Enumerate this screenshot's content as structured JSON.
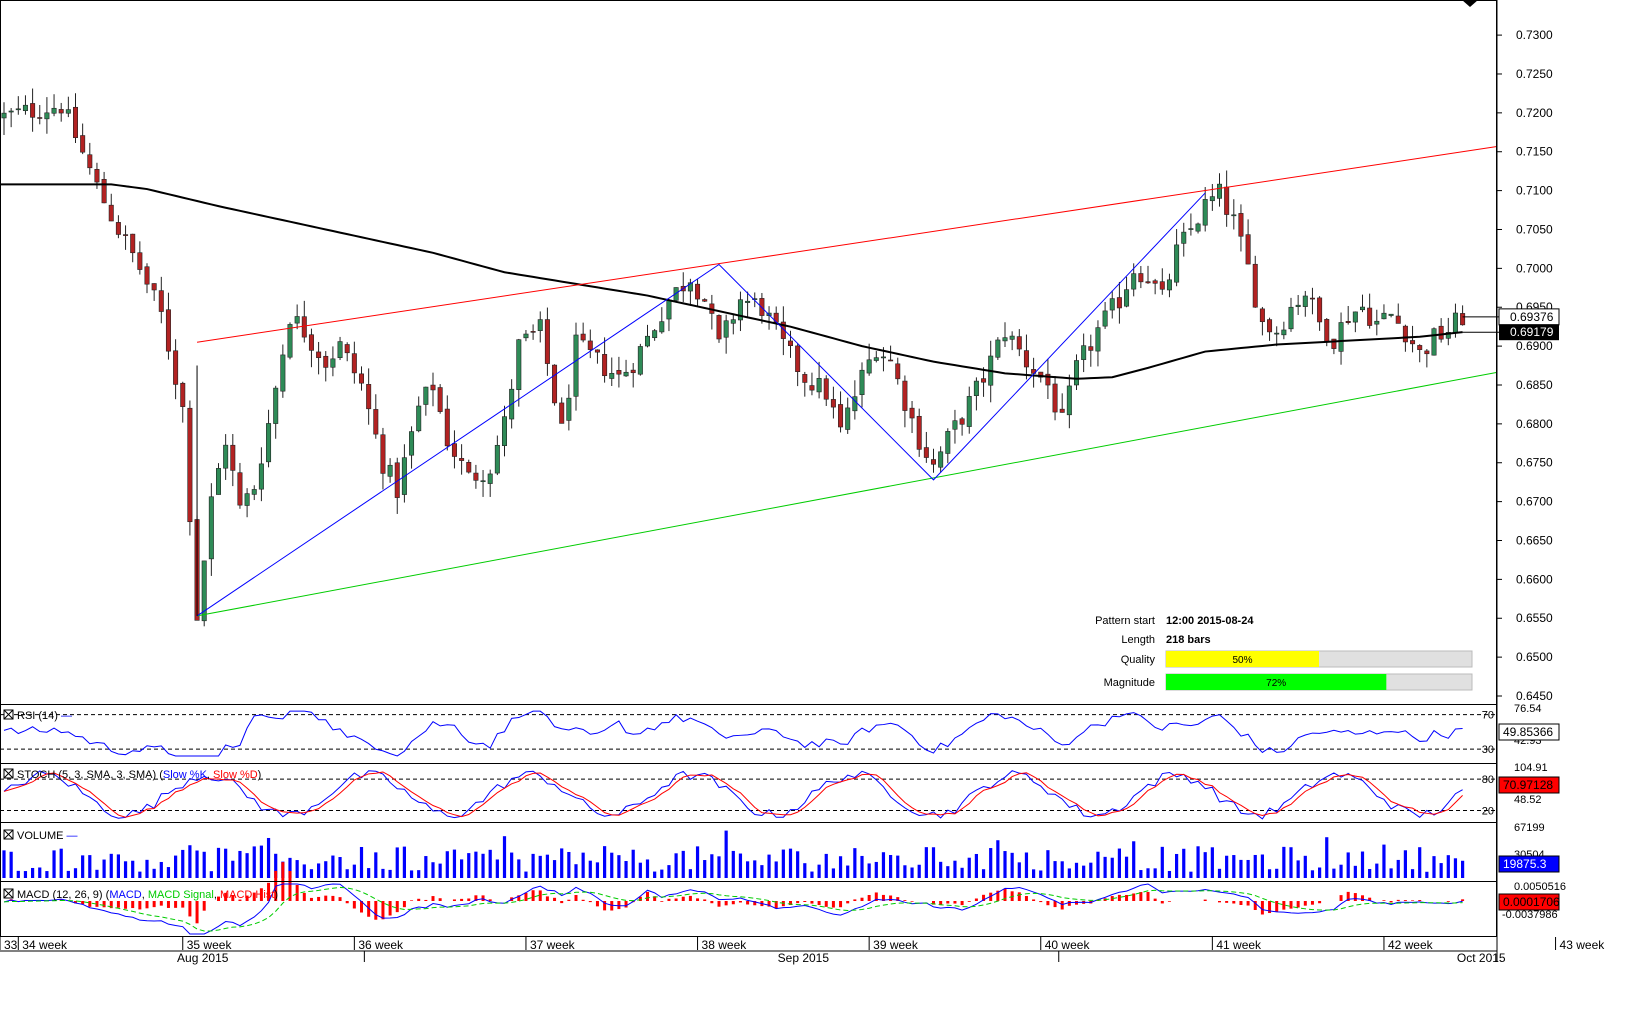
{
  "chart_data": {
    "type": "candlestick",
    "price_axis": {
      "ticks": [
        "0.7300",
        "0.7250",
        "0.7200",
        "0.7150",
        "0.7100",
        "0.7050",
        "0.7000",
        "0.6950",
        "0.6900",
        "0.6850",
        "0.6800",
        "0.6750",
        "0.6700",
        "0.6650",
        "0.6600",
        "0.6550",
        "0.6500",
        "0.6450"
      ],
      "range": [
        0.6441,
        0.734
      ],
      "current_price": "0.69376",
      "ma_value": "0.69179"
    },
    "price_series": {
      "anchors": [
        [
          0,
          0.7195
        ],
        [
          5,
          0.7205
        ],
        [
          8,
          0.721
        ],
        [
          10,
          0.717
        ],
        [
          13,
          0.7105
        ],
        [
          16,
          0.705
        ],
        [
          19,
          0.7
        ],
        [
          22,
          0.694
        ],
        [
          25,
          0.682
        ],
        [
          27,
          0.6553
        ],
        [
          29,
          0.67
        ],
        [
          31,
          0.678
        ],
        [
          33,
          0.669
        ],
        [
          35,
          0.672
        ],
        [
          37,
          0.68
        ],
        [
          40,
          0.694
        ],
        [
          42,
          0.692
        ],
        [
          45,
          0.688
        ],
        [
          47,
          0.69
        ],
        [
          50,
          0.685
        ],
        [
          53,
          0.675
        ],
        [
          55,
          0.6715
        ],
        [
          58,
          0.682
        ],
        [
          60,
          0.685
        ],
        [
          62,
          0.678
        ],
        [
          65,
          0.673
        ],
        [
          68,
          0.6745
        ],
        [
          70,
          0.68
        ],
        [
          72,
          0.69
        ],
        [
          75,
          0.692
        ],
        [
          78,
          0.679
        ],
        [
          80,
          0.69
        ],
        [
          83,
          0.688
        ],
        [
          86,
          0.686
        ],
        [
          88,
          0.688
        ],
        [
          90,
          0.691
        ],
        [
          93,
          0.696
        ],
        [
          96,
          0.699
        ],
        [
          98,
          0.696
        ],
        [
          100,
          0.69
        ],
        [
          103,
          0.696
        ],
        [
          106,
          0.695
        ],
        [
          109,
          0.69
        ],
        [
          112,
          0.686
        ],
        [
          115,
          0.684
        ],
        [
          117,
          0.679
        ],
        [
          120,
          0.686
        ],
        [
          122,
          0.69
        ],
        [
          124,
          0.688
        ],
        [
          126,
          0.683
        ],
        [
          128,
          0.678
        ],
        [
          130,
          0.6745
        ],
        [
          132,
          0.678
        ],
        [
          134,
          0.681
        ],
        [
          137,
          0.686
        ],
        [
          140,
          0.692
        ],
        [
          143,
          0.688
        ],
        [
          146,
          0.685
        ],
        [
          148,
          0.68
        ],
        [
          150,
          0.687
        ],
        [
          153,
          0.692
        ],
        [
          156,
          0.696
        ],
        [
          158,
          0.7
        ],
        [
          160,
          0.699
        ],
        [
          162,
          0.696
        ],
        [
          164,
          0.702
        ],
        [
          166,
          0.705
        ],
        [
          168,
          0.708
        ],
        [
          170,
          0.7095
        ],
        [
          172,
          0.706
        ],
        [
          174,
          0.7
        ],
        [
          176,
          0.693
        ],
        [
          178,
          0.692
        ],
        [
          180,
          0.695
        ],
        [
          182,
          0.697
        ],
        [
          184,
          0.693
        ],
        [
          186,
          0.691
        ],
        [
          188,
          0.694
        ],
        [
          190,
          0.695
        ],
        [
          192,
          0.693
        ],
        [
          194,
          0.694
        ],
        [
          196,
          0.692
        ],
        [
          198,
          0.689
        ],
        [
          200,
          0.691
        ],
        [
          202,
          0.692
        ],
        [
          204,
          0.6938
        ]
      ],
      "count": 205
    },
    "moving_average": [
      [
        0,
        0.7108
      ],
      [
        15,
        0.7108
      ],
      [
        20,
        0.7102
      ],
      [
        30,
        0.708
      ],
      [
        40,
        0.706
      ],
      [
        50,
        0.704
      ],
      [
        60,
        0.702
      ],
      [
        70,
        0.6995
      ],
      [
        80,
        0.698
      ],
      [
        90,
        0.6965
      ],
      [
        100,
        0.6945
      ],
      [
        110,
        0.6925
      ],
      [
        120,
        0.69
      ],
      [
        130,
        0.688
      ],
      [
        140,
        0.6865
      ],
      [
        150,
        0.6858
      ],
      [
        155,
        0.686
      ],
      [
        160,
        0.6872
      ],
      [
        168,
        0.6893
      ],
      [
        178,
        0.6902
      ],
      [
        190,
        0.6908
      ],
      [
        198,
        0.6912
      ],
      [
        204,
        0.6918
      ]
    ],
    "pattern_lines": {
      "resistance": [
        [
          27,
          0.6905
        ],
        [
          204,
          0.715
        ]
      ],
      "support": [
        [
          27,
          0.6553
        ],
        [
          204,
          0.6858
        ]
      ],
      "zigzag": [
        [
          27,
          0.6553
        ],
        [
          100,
          0.7005
        ],
        [
          130,
          0.6728
        ],
        [
          168,
          0.7097
        ]
      ]
    },
    "pattern_info": {
      "start_label": "Pattern start",
      "start_value": "12:00 2015-08-24",
      "length_label": "Length",
      "length_value": "218 bars",
      "quality_label": "Quality",
      "quality_value": "50%",
      "quality_fraction": 0.5,
      "magnitude_label": "Magnitude",
      "magnitude_value": "72%",
      "magnitude_fraction": 0.72
    },
    "indicators": {
      "rsi": {
        "label": "RSI (14)",
        "value": "49.85366",
        "ticks": [
          "76.54",
          "42.93"
        ],
        "levels": [
          "70",
          "30"
        ],
        "bounds": [
          15,
          80
        ],
        "level_values": [
          70,
          30
        ]
      },
      "stoch": {
        "label_main": "STOCH (5, 3, SMA, 3, SMA) (",
        "label_k": "Slow %K",
        "label_d": "Slow %D",
        "label_end": ")",
        "value": "70.97128",
        "ticks": [
          "104.91",
          "48.52"
        ],
        "levels": [
          "80",
          "20"
        ],
        "bounds": [
          0,
          105
        ],
        "level_values": [
          80,
          20
        ]
      },
      "volume": {
        "label": "VOLUME",
        "value": "19875.3",
        "ticks": [
          "67199",
          "30504"
        ]
      },
      "macd": {
        "label_main": "MACD (12, 26, 9) (",
        "label_macd": "MACD",
        "label_signal": "MACD Signal",
        "label_hist": "MACD Hist",
        "label_end": ")",
        "value": "0.0001706",
        "ticks": [
          "0.0050516",
          "-0.0037986"
        ]
      }
    },
    "time_axis": {
      "weeks": [
        {
          "label": "33",
          "bar": -2
        },
        {
          "label": "34 week",
          "bar": 2
        },
        {
          "label": "35 week",
          "bar": 25
        },
        {
          "label": "36 week",
          "bar": 49
        },
        {
          "label": "37 week",
          "bar": 73
        },
        {
          "label": "38 week",
          "bar": 97
        },
        {
          "label": "39 week",
          "bar": 121
        },
        {
          "label": "40 week",
          "bar": 145
        },
        {
          "label": "41 week",
          "bar": 169
        },
        {
          "label": "42 week",
          "bar": 193
        },
        {
          "label": "43 week",
          "bar": 217
        }
      ],
      "months": [
        {
          "label": "Aug 2015",
          "bar": 27
        },
        {
          "label": "Sep 2015",
          "bar": 111
        },
        {
          "label": "Oct 2015",
          "bar": 206
        }
      ]
    },
    "colors": {
      "bull": "#2e8b57",
      "bear": "#b22222",
      "ma": "#000000",
      "resistance": "#ff0000",
      "support": "#00cc00",
      "zigzag": "#0000ff",
      "quality": "#ffff00",
      "magnitude": "#00ff00",
      "rsi": "#0000ff",
      "stoch_k": "#0000ff",
      "stoch_d": "#ff0000",
      "volume": "#0000ff",
      "macd": "#0000ff",
      "macd_signal": "#00cc00",
      "macd_hist": "#ff0000"
    }
  }
}
